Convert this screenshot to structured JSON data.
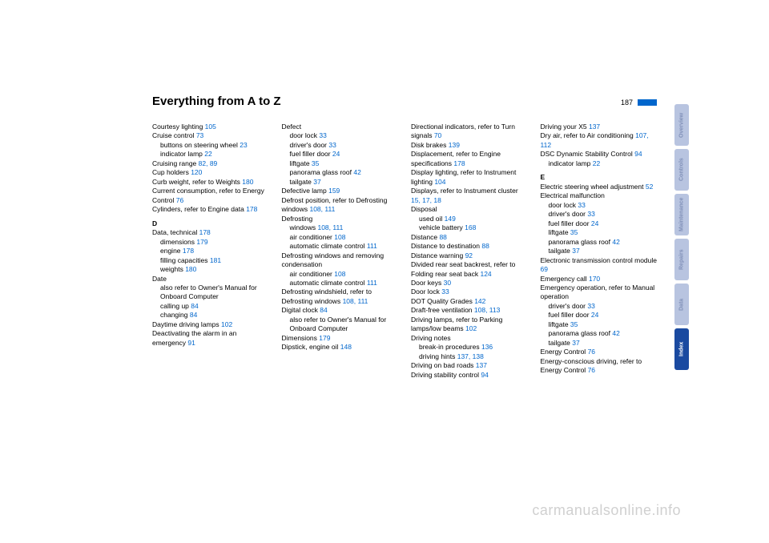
{
  "title": "Everything from A to Z",
  "page_number": "187",
  "watermark": "carmanualsonline.info",
  "tabs": [
    {
      "label": "Overview",
      "active": false
    },
    {
      "label": "Controls",
      "active": false
    },
    {
      "label": "Maintenance",
      "active": false
    },
    {
      "label": "Repairs",
      "active": false
    },
    {
      "label": "Data",
      "active": false
    },
    {
      "label": "Index",
      "active": true
    }
  ],
  "col1": [
    {
      "t": "Courtesy lighting ",
      "r": "105"
    },
    {
      "t": "Cruise control ",
      "r": "73"
    },
    {
      "t": "buttons on steering wheel ",
      "r": "23",
      "sub": true
    },
    {
      "t": "indicator lamp ",
      "r": "22",
      "sub": true
    },
    {
      "t": "Cruising range ",
      "r": "82, 89"
    },
    {
      "t": "Cup holders ",
      "r": "120"
    },
    {
      "t": "Curb weight, refer to Weights ",
      "r": "180"
    },
    {
      "t": "Current consumption, refer to Energy Control ",
      "r": "76"
    },
    {
      "t": "Cylinders, refer to Engine data ",
      "r": "178"
    },
    {
      "letter": "D"
    },
    {
      "t": "Data, technical ",
      "r": "178"
    },
    {
      "t": "dimensions ",
      "r": "179",
      "sub": true
    },
    {
      "t": "engine ",
      "r": "178",
      "sub": true
    },
    {
      "t": "filling capacities ",
      "r": "181",
      "sub": true
    },
    {
      "t": "weights ",
      "r": "180",
      "sub": true
    },
    {
      "t": "Date"
    },
    {
      "t": "also refer to Owner's Manual for Onboard Computer",
      "sub": true
    },
    {
      "t": "calling up ",
      "r": "84",
      "sub": true
    },
    {
      "t": "changing ",
      "r": "84",
      "sub": true
    },
    {
      "t": "Daytime driving lamps ",
      "r": "102"
    },
    {
      "t": "Deactivating the alarm in an emergency ",
      "r": "91"
    }
  ],
  "col2": [
    {
      "t": "Defect"
    },
    {
      "t": "door lock ",
      "r": "33",
      "sub": true
    },
    {
      "t": "driver's door ",
      "r": "33",
      "sub": true
    },
    {
      "t": "fuel filler door ",
      "r": "24",
      "sub": true
    },
    {
      "t": "liftgate ",
      "r": "35",
      "sub": true
    },
    {
      "t": "panorama glass roof ",
      "r": "42",
      "sub": true
    },
    {
      "t": "tailgate ",
      "r": "37",
      "sub": true
    },
    {
      "t": "Defective lamp ",
      "r": "159"
    },
    {
      "t": "Defrost position, refer to Defrosting windows ",
      "r": "108, 111"
    },
    {
      "t": "Defrosting"
    },
    {
      "t": "windows ",
      "r": "108, 111",
      "sub": true
    },
    {
      "t": "air conditioner ",
      "r": "108",
      "sub": true
    },
    {
      "t": "automatic climate control ",
      "r": "111",
      "sub": true
    },
    {
      "t": "Defrosting windows and removing condensation"
    },
    {
      "t": "air conditioner ",
      "r": "108",
      "sub": true
    },
    {
      "t": "automatic climate control ",
      "r": "111",
      "sub": true
    },
    {
      "t": "Defrosting windshield, refer to Defrosting windows ",
      "r": "108, 111"
    },
    {
      "t": "Digital clock ",
      "r": "84"
    },
    {
      "t": "also refer to Owner's Manual for Onboard Computer",
      "sub": true
    },
    {
      "t": "Dimensions ",
      "r": "179"
    },
    {
      "t": "Dipstick, engine oil ",
      "r": "148"
    }
  ],
  "col3": [
    {
      "t": "Directional indicators, refer to Turn signals ",
      "r": "70"
    },
    {
      "t": "Disk brakes ",
      "r": "139"
    },
    {
      "t": "Displacement, refer to Engine specifications ",
      "r": "178"
    },
    {
      "t": "Display lighting, refer to Instrument lighting ",
      "r": "104"
    },
    {
      "t": "Displays, refer to Instrument cluster ",
      "r": "15, 17, 18"
    },
    {
      "t": "Disposal"
    },
    {
      "t": "used oil ",
      "r": "149",
      "sub": true
    },
    {
      "t": "vehicle battery ",
      "r": "168",
      "sub": true
    },
    {
      "t": "Distance ",
      "r": "88"
    },
    {
      "t": "Distance to destination ",
      "r": "88"
    },
    {
      "t": "Distance warning ",
      "r": "92"
    },
    {
      "t": "Divided rear seat backrest, refer to Folding rear seat back ",
      "r": "124"
    },
    {
      "t": "Door keys ",
      "r": "30"
    },
    {
      "t": "Door lock ",
      "r": "33"
    },
    {
      "t": "DOT Quality Grades ",
      "r": "142"
    },
    {
      "t": "Draft-free ventilation ",
      "r": "108, 113"
    },
    {
      "t": "Driving lamps, refer to Parking lamps/low beams ",
      "r": "102"
    },
    {
      "t": "Driving notes"
    },
    {
      "t": "break-in procedures ",
      "r": "136",
      "sub": true
    },
    {
      "t": "driving hints ",
      "r": "137, 138",
      "sub": true
    },
    {
      "t": "Driving on bad roads ",
      "r": "137"
    },
    {
      "t": "Driving stability control ",
      "r": "94"
    }
  ],
  "col4": [
    {
      "t": "Driving your X5 ",
      "r": "137"
    },
    {
      "t": "Dry air, refer to Air conditioning ",
      "r": "107, 112"
    },
    {
      "t": "DSC Dynamic Stability Control ",
      "r": "94"
    },
    {
      "t": "indicator lamp ",
      "r": "22",
      "sub": true
    },
    {
      "letter": "E"
    },
    {
      "t": "Electric steering wheel adjustment ",
      "r": "52"
    },
    {
      "t": "Electrical malfunction"
    },
    {
      "t": "door lock ",
      "r": "33",
      "sub": true
    },
    {
      "t": "driver's door ",
      "r": "33",
      "sub": true
    },
    {
      "t": "fuel filler door ",
      "r": "24",
      "sub": true
    },
    {
      "t": "liftgate ",
      "r": "35",
      "sub": true
    },
    {
      "t": "panorama glass roof ",
      "r": "42",
      "sub": true
    },
    {
      "t": "tailgate ",
      "r": "37",
      "sub": true
    },
    {
      "t": "Electronic transmission control module ",
      "r": "69"
    },
    {
      "t": "Emergency call ",
      "r": "170"
    },
    {
      "t": "Emergency operation, refer to Manual operation"
    },
    {
      "t": "driver's door ",
      "r": "33",
      "sub": true
    },
    {
      "t": "fuel filler door ",
      "r": "24",
      "sub": true
    },
    {
      "t": "liftgate ",
      "r": "35",
      "sub": true
    },
    {
      "t": "panorama glass roof ",
      "r": "42",
      "sub": true
    },
    {
      "t": "tailgate ",
      "r": "37",
      "sub": true
    },
    {
      "t": "Energy Control ",
      "r": "76"
    },
    {
      "t": "Energy-conscious driving, refer to Energy Control ",
      "r": "76"
    }
  ]
}
